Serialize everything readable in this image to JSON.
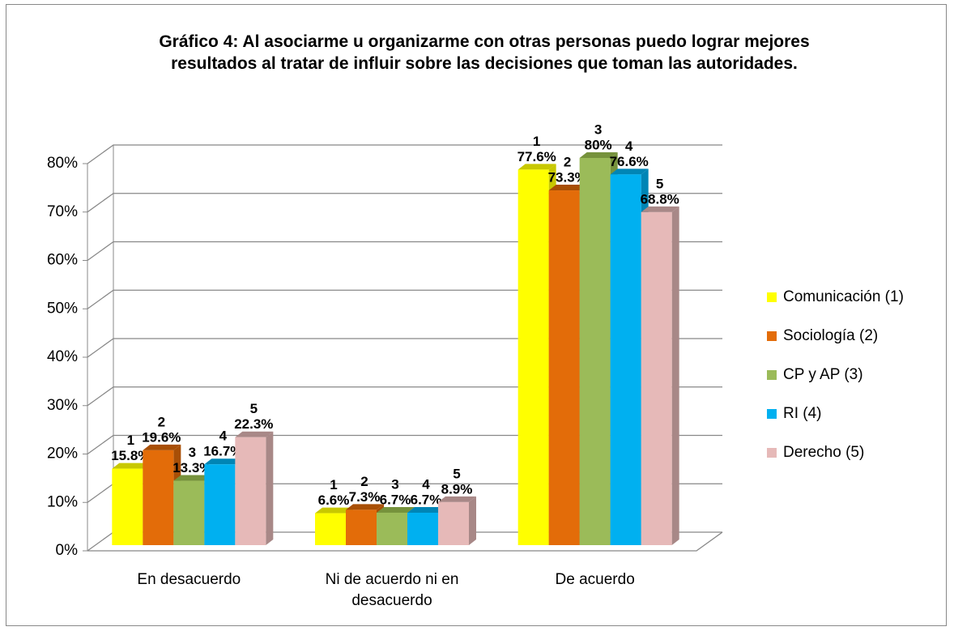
{
  "chart_data": {
    "type": "bar3d",
    "title": "Gráfico 4: Al asociarme u organizarme con otras personas puedo lograr mejores resultados al tratar de influir sobre las decisiones que toman las autoridades.",
    "categories": [
      "En desacuerdo",
      "Ni de acuerdo ni en desacuerdo",
      "De acuerdo"
    ],
    "ylim": [
      0,
      80
    ],
    "yticks": [
      {
        "value": 0,
        "label": "0%"
      },
      {
        "value": 10,
        "label": "10%"
      },
      {
        "value": 20,
        "label": "20%"
      },
      {
        "value": 30,
        "label": "30%"
      },
      {
        "value": 40,
        "label": "40%"
      },
      {
        "value": 50,
        "label": "50%"
      },
      {
        "value": 60,
        "label": "60%"
      },
      {
        "value": 70,
        "label": "70%"
      },
      {
        "value": 80,
        "label": "80%"
      }
    ],
    "grid": true,
    "legend": "right",
    "series": [
      {
        "name": "Comunicación (1)",
        "tag": "1",
        "color": "#ffff00",
        "side": "#c8c800",
        "values": [
          15.8,
          6.6,
          77.6
        ],
        "value_labels": [
          "15.8%",
          "6.6%",
          "77.6%"
        ]
      },
      {
        "name": "Sociología (2)",
        "tag": "2",
        "color": "#e36c09",
        "side": "#a84f06",
        "values": [
          19.6,
          7.3,
          73.3
        ],
        "value_labels": [
          "19.6%",
          "7.3%",
          "73.3%"
        ]
      },
      {
        "name": "CP y AP (3)",
        "tag": "3",
        "color": "#9bbb59",
        "side": "#76923c",
        "values": [
          13.3,
          6.7,
          80
        ],
        "value_labels": [
          "13.3%",
          "6.7%",
          "80%"
        ]
      },
      {
        "name": "RI (4)",
        "tag": "4",
        "color": "#00b0f0",
        "side": "#0085b5",
        "values": [
          16.7,
          6.7,
          76.6
        ],
        "value_labels": [
          "16.7%",
          "6.7%",
          "76.6%"
        ]
      },
      {
        "name": "Derecho (5)",
        "tag": "5",
        "color": "#e6b9b8",
        "side": "#a88887",
        "values": [
          22.3,
          8.9,
          68.8
        ],
        "value_labels": [
          "22.3%",
          "8.9%",
          "68.8%"
        ]
      }
    ]
  }
}
